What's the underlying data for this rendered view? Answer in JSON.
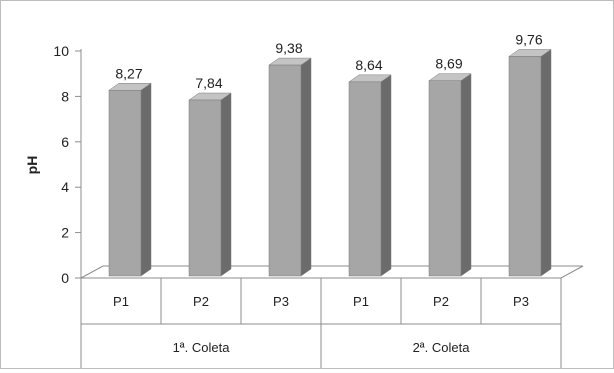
{
  "chart_data": {
    "type": "bar",
    "ylabel": "pH",
    "ylim": [
      0,
      10
    ],
    "yticks": [
      0,
      2,
      4,
      6,
      8,
      10
    ],
    "grid": false,
    "legend": "none",
    "groups": [
      {
        "label": "1ª. Coleta",
        "categories": [
          "P1",
          "P2",
          "P3"
        ]
      },
      {
        "label": "2ª. Coleta",
        "categories": [
          "P1",
          "P2",
          "P3"
        ]
      }
    ],
    "categories": [
      "P1",
      "P2",
      "P3",
      "P1",
      "P2",
      "P3"
    ],
    "values": [
      8.27,
      7.84,
      9.38,
      8.64,
      8.69,
      9.76
    ],
    "data_labels": [
      "8,27",
      "7,84",
      "9,38",
      "8,64",
      "8,69",
      "9,76"
    ],
    "colors": {
      "front": "#a6a6a6",
      "side": "#6b6b6b",
      "top": "#c4c4c4",
      "edge": "#7a7a7a"
    }
  }
}
